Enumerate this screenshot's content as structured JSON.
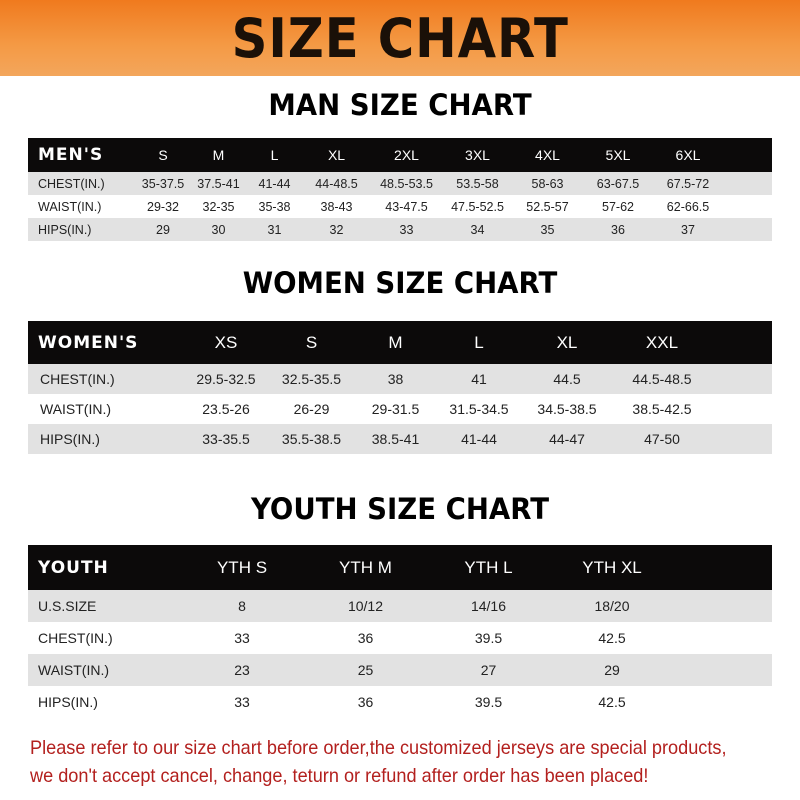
{
  "banner_title": "SIZE CHART",
  "men": {
    "title": "MAN SIZE CHART",
    "header": [
      "MEN'S",
      "S",
      "M",
      "L",
      "XL",
      "2XL",
      "3XL",
      "4XL",
      "5XL",
      "6XL"
    ],
    "rows": [
      [
        "CHEST(IN.)",
        "35-37.5",
        "37.5-41",
        "41-44",
        "44-48.5",
        "48.5-53.5",
        "53.5-58",
        "58-63",
        "63-67.5",
        "67.5-72"
      ],
      [
        "WAIST(IN.)",
        "29-32",
        "32-35",
        "35-38",
        "38-43",
        "43-47.5",
        "47.5-52.5",
        "52.5-57",
        "57-62",
        "62-66.5"
      ],
      [
        "HIPS(IN.)",
        "29",
        "30",
        "31",
        "32",
        "33",
        "34",
        "35",
        "36",
        "37"
      ]
    ]
  },
  "women": {
    "title": "WOMEN SIZE CHART",
    "header": [
      "WOMEN'S",
      "XS",
      "S",
      "M",
      "L",
      "XL",
      "XXL"
    ],
    "rows": [
      [
        "CHEST(IN.)",
        "29.5-32.5",
        "32.5-35.5",
        "38",
        "41",
        "44.5",
        "44.5-48.5"
      ],
      [
        "WAIST(IN.)",
        "23.5-26",
        "26-29",
        "29-31.5",
        "31.5-34.5",
        "34.5-38.5",
        "38.5-42.5"
      ],
      [
        "HIPS(IN.)",
        "33-35.5",
        "35.5-38.5",
        "38.5-41",
        "41-44",
        "44-47",
        "47-50"
      ]
    ]
  },
  "youth": {
    "title": "YOUTH SIZE CHART",
    "header": [
      "YOUTH",
      "YTH S",
      "YTH M",
      "YTH L",
      "YTH XL"
    ],
    "rows": [
      [
        "U.S.SIZE",
        "8",
        "10/12",
        "14/16",
        "18/20"
      ],
      [
        "CHEST(IN.)",
        "33",
        "36",
        "39.5",
        "42.5"
      ],
      [
        "WAIST(IN.)",
        "23",
        "25",
        "27",
        "29"
      ],
      [
        "HIPS(IN.)",
        "33",
        "36",
        "39.5",
        "42.5"
      ]
    ]
  },
  "notice": {
    "line1": "Please refer to our size chart before order,the customized jerseys are special products,",
    "line2": "we don't accept cancel, change, teturn or refund after order has been placed!"
  },
  "colors": {
    "banner": "#f07a1e",
    "header_row": "#0c0a0a",
    "stripe": "#e2e2e2",
    "notice": "#b3201e"
  }
}
